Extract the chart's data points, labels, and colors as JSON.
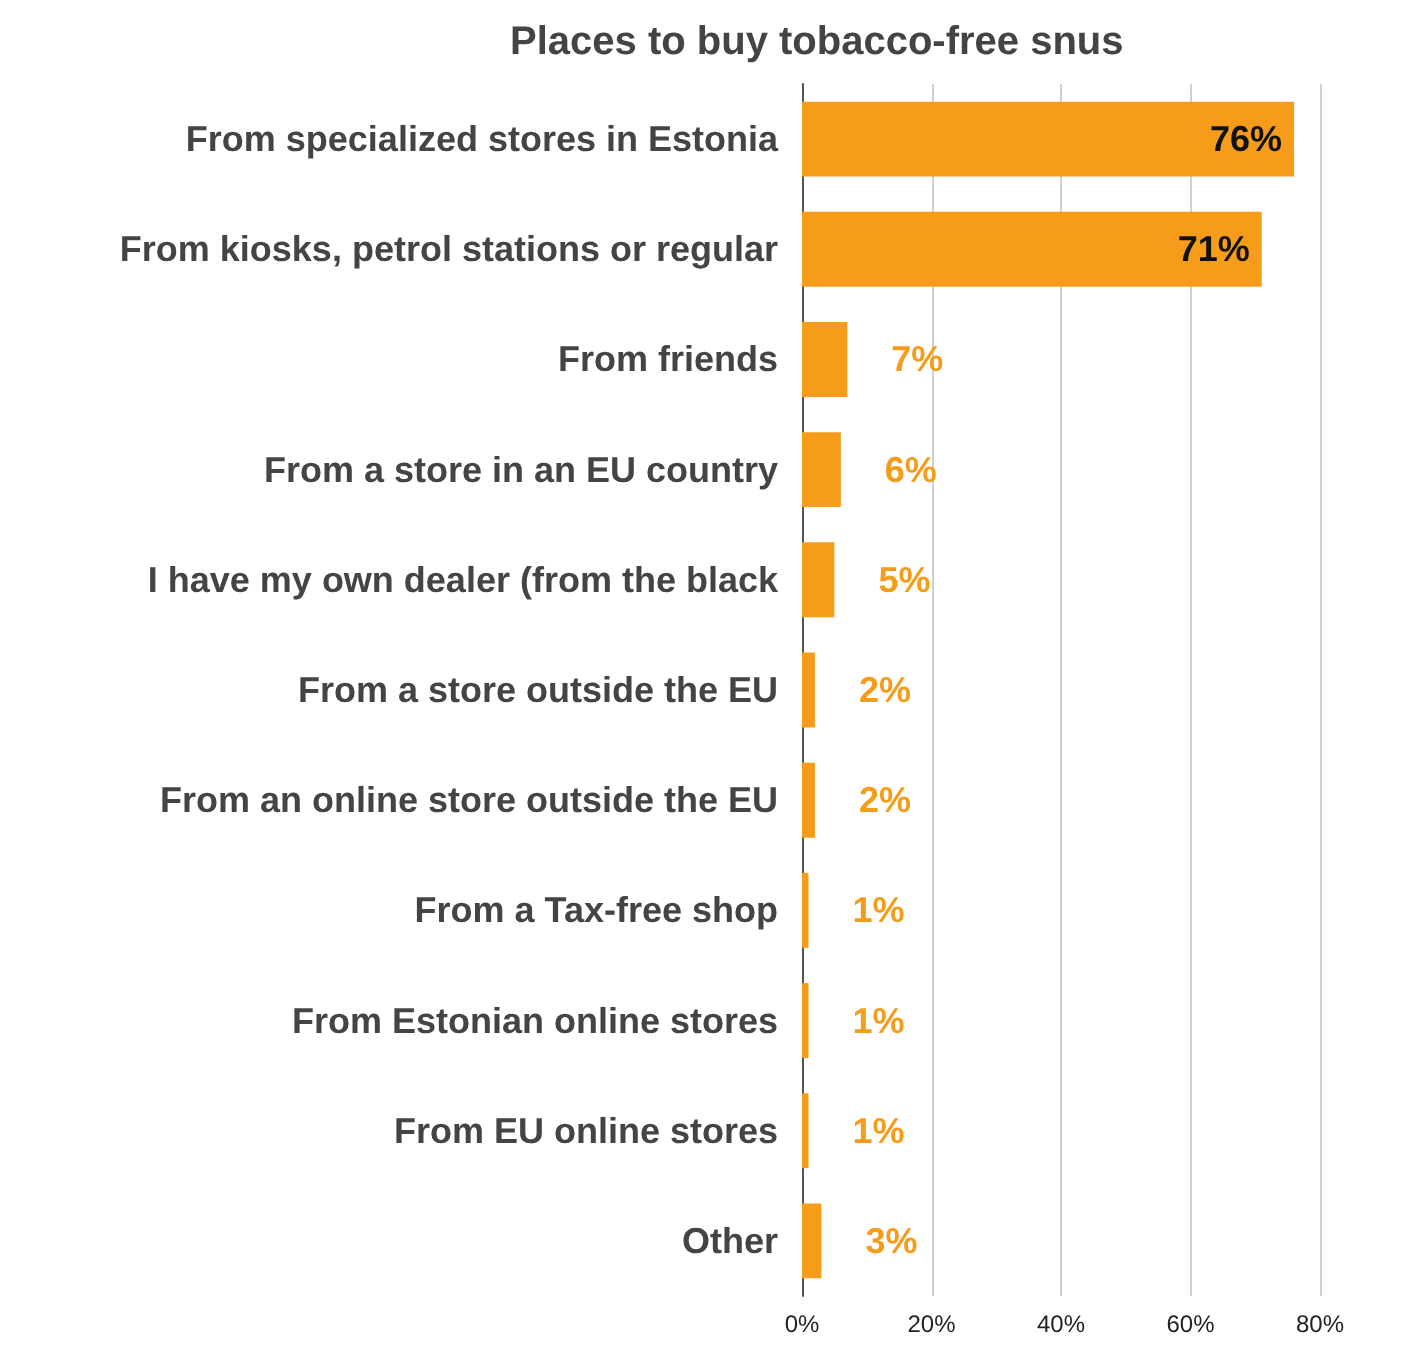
{
  "chart_data": {
    "type": "bar",
    "orientation": "horizontal",
    "title": "Places to buy tobacco-free snus",
    "categories": [
      "From specialized stores in Estonia",
      "From kiosks, petrol stations or regular",
      "From friends",
      "From a store in an EU country",
      "I have my own dealer (from the black",
      "From a store outside the EU",
      "From an online store outside the EU",
      "From a Tax-free shop",
      "From Estonian online stores",
      "From EU online stores",
      "Other"
    ],
    "values": [
      76,
      71,
      7,
      6,
      5,
      2,
      2,
      1,
      1,
      1,
      3
    ],
    "value_labels": [
      "76%",
      "71%",
      "7%",
      "6%",
      "5%",
      "2%",
      "2%",
      "1%",
      "1%",
      "1%",
      "3%"
    ],
    "color": "#f59c1a",
    "xlim": [
      0,
      80
    ],
    "xticks": [
      {
        "value": 0,
        "label": "0%"
      },
      {
        "value": 20,
        "label": "20%"
      },
      {
        "value": 40,
        "label": "40%"
      },
      {
        "value": 60,
        "label": "60%"
      },
      {
        "value": 80,
        "label": "80%"
      }
    ],
    "grid": "x"
  }
}
